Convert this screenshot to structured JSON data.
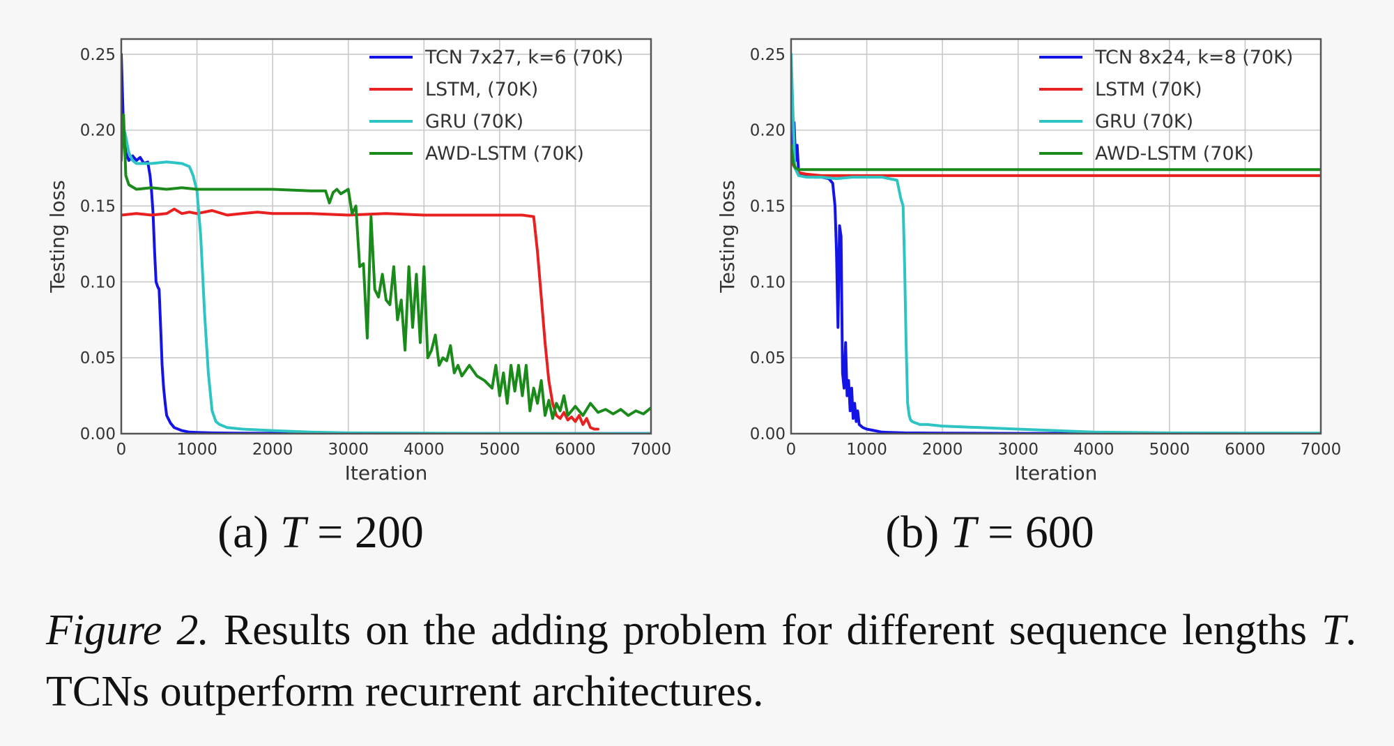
{
  "chart_data": [
    {
      "type": "line",
      "panel": "a",
      "xlabel": "Iteration",
      "ylabel": "Testing loss",
      "xlim": [
        0,
        7000
      ],
      "ylim": [
        0,
        0.26
      ],
      "xticks": [
        "0",
        "1000",
        "2000",
        "3000",
        "4000",
        "5000",
        "6000",
        "7000"
      ],
      "yticks": [
        "0.00",
        "0.05",
        "0.10",
        "0.15",
        "0.20",
        "0.25"
      ],
      "grid": true,
      "legend_position": "top-right",
      "series": [
        {
          "name": "TCN 7x27, k=6 (70K)",
          "color": "#1414e6",
          "x": [
            0,
            30,
            60,
            100,
            150,
            200,
            250,
            300,
            350,
            380,
            400,
            420,
            440,
            460,
            480,
            500,
            520,
            540,
            560,
            580,
            600,
            650,
            700,
            800,
            900,
            1000,
            1200,
            1500,
            2000,
            3000,
            5000,
            7000
          ],
          "y": [
            0.25,
            0.2,
            0.185,
            0.18,
            0.183,
            0.18,
            0.182,
            0.178,
            0.179,
            0.17,
            0.16,
            0.145,
            0.12,
            0.1,
            0.097,
            0.095,
            0.07,
            0.045,
            0.03,
            0.02,
            0.012,
            0.007,
            0.004,
            0.002,
            0.001,
            0.0008,
            0.0005,
            0.0003,
            0.0002,
            0.0001,
            0.0001,
            0.0001
          ]
        },
        {
          "name": "LSTM, (70K)",
          "color": "#e82020",
          "x": [
            0,
            200,
            400,
            600,
            700,
            800,
            900,
            1000,
            1200,
            1400,
            1600,
            1800,
            2000,
            2500,
            3000,
            3500,
            4000,
            4500,
            5000,
            5300,
            5450,
            5500,
            5550,
            5600,
            5650,
            5700,
            5750,
            5800,
            5850,
            5900,
            5950,
            6000,
            6050,
            6100,
            6150,
            6200,
            6250,
            6300
          ],
          "y": [
            0.144,
            0.145,
            0.144,
            0.145,
            0.148,
            0.145,
            0.146,
            0.145,
            0.147,
            0.144,
            0.145,
            0.146,
            0.145,
            0.145,
            0.144,
            0.145,
            0.144,
            0.144,
            0.144,
            0.144,
            0.143,
            0.12,
            0.09,
            0.06,
            0.035,
            0.02,
            0.012,
            0.01,
            0.014,
            0.009,
            0.011,
            0.008,
            0.012,
            0.006,
            0.01,
            0.004,
            0.003,
            0.003
          ]
        },
        {
          "name": "GRU (70K)",
          "color": "#2ec4c4",
          "x": [
            0,
            50,
            100,
            150,
            200,
            400,
            600,
            800,
            900,
            950,
            1000,
            1050,
            1100,
            1150,
            1200,
            1250,
            1300,
            1400,
            1600,
            2000,
            2500,
            3000,
            4000,
            5000,
            7000
          ],
          "y": [
            0.205,
            0.198,
            0.185,
            0.18,
            0.178,
            0.178,
            0.179,
            0.178,
            0.176,
            0.17,
            0.16,
            0.13,
            0.08,
            0.04,
            0.015,
            0.008,
            0.006,
            0.004,
            0.003,
            0.002,
            0.001,
            0.0005,
            0.0003,
            0.0002,
            0.0001
          ],
          "y_note": "values read from plot"
        },
        {
          "name": "AWD-LSTM (70K)",
          "color": "#1a8a1a",
          "x": [
            0,
            30,
            60,
            100,
            200,
            400,
            600,
            800,
            1000,
            1500,
            2000,
            2500,
            2700,
            2750,
            2800,
            2850,
            2900,
            3000,
            3050,
            3100,
            3150,
            3200,
            3250,
            3300,
            3350,
            3400,
            3450,
            3500,
            3550,
            3600,
            3650,
            3700,
            3750,
            3800,
            3850,
            3900,
            3950,
            4000,
            4050,
            4100,
            4150,
            4200,
            4250,
            4300,
            4350,
            4400,
            4450,
            4500,
            4600,
            4700,
            4800,
            4900,
            4950,
            5000,
            5050,
            5100,
            5150,
            5200,
            5250,
            5300,
            5350,
            5400,
            5450,
            5500,
            5550,
            5600,
            5650,
            5700,
            5750,
            5800,
            5850,
            5900,
            6000,
            6100,
            6200,
            6300,
            6400,
            6500,
            6600,
            6700,
            6800,
            6900,
            7000
          ],
          "y": [
            0.18,
            0.21,
            0.17,
            0.164,
            0.161,
            0.162,
            0.161,
            0.162,
            0.161,
            0.161,
            0.161,
            0.16,
            0.16,
            0.152,
            0.159,
            0.161,
            0.158,
            0.161,
            0.145,
            0.15,
            0.11,
            0.112,
            0.063,
            0.143,
            0.095,
            0.09,
            0.105,
            0.088,
            0.085,
            0.11,
            0.075,
            0.088,
            0.055,
            0.11,
            0.07,
            0.105,
            0.06,
            0.11,
            0.05,
            0.055,
            0.065,
            0.045,
            0.05,
            0.048,
            0.058,
            0.04,
            0.045,
            0.038,
            0.045,
            0.038,
            0.035,
            0.03,
            0.045,
            0.025,
            0.04,
            0.02,
            0.045,
            0.028,
            0.045,
            0.025,
            0.045,
            0.015,
            0.03,
            0.02,
            0.035,
            0.012,
            0.022,
            0.01,
            0.02,
            0.015,
            0.025,
            0.012,
            0.018,
            0.012,
            0.02,
            0.014,
            0.016,
            0.013,
            0.016,
            0.012,
            0.015,
            0.013,
            0.017
          ]
        }
      ]
    },
    {
      "type": "line",
      "panel": "b",
      "xlabel": "Iteration",
      "ylabel": "Testing loss",
      "xlim": [
        0,
        7000
      ],
      "ylim": [
        0,
        0.26
      ],
      "xticks": [
        "0",
        "1000",
        "2000",
        "3000",
        "4000",
        "5000",
        "6000",
        "7000"
      ],
      "yticks": [
        "0.00",
        "0.05",
        "0.10",
        "0.15",
        "0.20",
        "0.25"
      ],
      "grid": true,
      "legend_position": "top-right",
      "series": [
        {
          "name": "TCN 8x24, k=8 (70K)",
          "color": "#1414e6",
          "x": [
            0,
            20,
            40,
            60,
            80,
            100,
            150,
            200,
            300,
            400,
            500,
            550,
            580,
            600,
            620,
            640,
            660,
            680,
            700,
            720,
            740,
            760,
            780,
            800,
            820,
            840,
            860,
            880,
            900,
            950,
            1000,
            1100,
            1200,
            1500,
            2000,
            3000,
            7000
          ],
          "y": [
            0.25,
            0.19,
            0.205,
            0.18,
            0.19,
            0.172,
            0.17,
            0.17,
            0.169,
            0.169,
            0.168,
            0.165,
            0.15,
            0.12,
            0.07,
            0.137,
            0.13,
            0.04,
            0.03,
            0.06,
            0.025,
            0.035,
            0.015,
            0.03,
            0.01,
            0.02,
            0.008,
            0.015,
            0.006,
            0.004,
            0.003,
            0.002,
            0.001,
            0.0005,
            0.0003,
            0.0002,
            0.0001
          ]
        },
        {
          "name": "LSTM (70K)",
          "color": "#e82020",
          "x": [
            0,
            50,
            100,
            200,
            400,
            600,
            1000,
            2000,
            3000,
            4000,
            5000,
            6000,
            7000
          ],
          "y": [
            0.18,
            0.175,
            0.172,
            0.171,
            0.17,
            0.17,
            0.17,
            0.17,
            0.17,
            0.17,
            0.17,
            0.17,
            0.17
          ]
        },
        {
          "name": "GRU (70K)",
          "color": "#2ec4c4",
          "x": [
            0,
            50,
            100,
            200,
            400,
            600,
            800,
            1000,
            1200,
            1400,
            1450,
            1480,
            1500,
            1520,
            1540,
            1560,
            1580,
            1600,
            1650,
            1700,
            1800,
            2000,
            2500,
            3000,
            3500,
            4000,
            5000,
            7000
          ],
          "y": [
            0.25,
            0.175,
            0.17,
            0.169,
            0.169,
            0.168,
            0.169,
            0.169,
            0.169,
            0.167,
            0.155,
            0.15,
            0.11,
            0.06,
            0.02,
            0.012,
            0.009,
            0.008,
            0.007,
            0.006,
            0.006,
            0.005,
            0.004,
            0.003,
            0.002,
            0.001,
            0.0005,
            0.0003
          ]
        },
        {
          "name": "AWD-LSTM (70K)",
          "color": "#1a8a1a",
          "x": [
            0,
            30,
            60,
            100,
            200,
            400,
            1000,
            2000,
            3000,
            4000,
            5000,
            6000,
            7000
          ],
          "y": [
            0.19,
            0.178,
            0.175,
            0.174,
            0.174,
            0.174,
            0.174,
            0.174,
            0.174,
            0.174,
            0.174,
            0.174,
            0.174
          ]
        }
      ]
    }
  ],
  "subcaptions": {
    "a_prefix": "(a) ",
    "a_var": "T",
    "a_rest": " = 200",
    "b_prefix": "(b) ",
    "b_var": "T",
    "b_rest": " = 600"
  },
  "caption": {
    "label": "Figure 2.",
    "text_1": " Results on the adding problem for different sequence lengths ",
    "var": "T",
    "text_2": ". TCNs outperform recurrent architectures."
  }
}
